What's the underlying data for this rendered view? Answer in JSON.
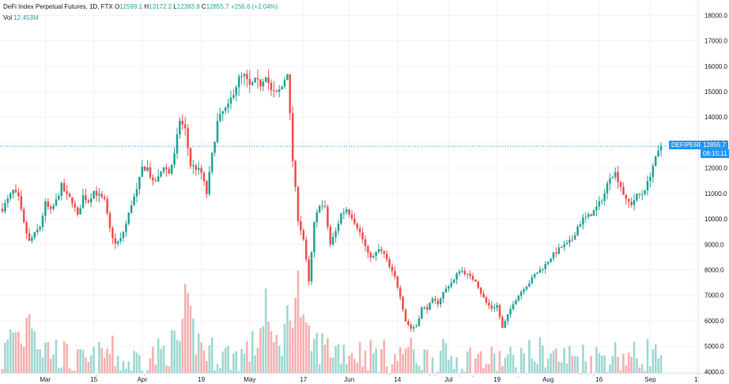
{
  "legend": {
    "symbol": "DeFi Index Perpetual Futures, 1D, FTX",
    "open_label": "O",
    "open": "12599.1",
    "high_label": "H",
    "high": "13172.2",
    "low_label": "L",
    "low": "12383.8",
    "close_label": "C",
    "close": "12855.7",
    "change": "+256.6 (+2.04%)",
    "vol_label": "Vol",
    "vol": "12.453M"
  },
  "price_tag": {
    "symbol": "DEFIPERP",
    "price": "12855.7",
    "countdown": "08:15:11"
  },
  "colors": {
    "up": "#26a69a",
    "down": "#ef5350",
    "accent": "#2196f3",
    "vol_up": "#9fd8d2",
    "vol_down": "#f6b1b0"
  },
  "chart_data": {
    "type": "candlestick",
    "title": "DeFi Index Perpetual Futures, 1D, FTX",
    "y_ticks": [
      "18000.0",
      "17000.0",
      "16000.0",
      "15000.0",
      "14000.0",
      "13000.0",
      "12000.0",
      "11000.0",
      "10000.0",
      "9000.0",
      "8000.0",
      "7000.0",
      "6000.0",
      "5000.0",
      "4000.0"
    ],
    "x_ticks": [
      "Mar",
      "15",
      "Apr",
      "19",
      "May",
      "17",
      "Jun",
      "14",
      "Jul",
      "19",
      "Aug",
      "16",
      "Sep",
      "1"
    ],
    "ylim": [
      3950,
      18600
    ],
    "last_price": 12855.7,
    "anchors": [
      [
        0,
        10400
      ],
      [
        4,
        11100
      ],
      [
        6,
        10800
      ],
      [
        8,
        9800
      ],
      [
        10,
        9100
      ],
      [
        12,
        9400
      ],
      [
        14,
        9700
      ],
      [
        16,
        10600
      ],
      [
        18,
        10300
      ],
      [
        20,
        10700
      ],
      [
        22,
        11300
      ],
      [
        24,
        10900
      ],
      [
        26,
        10700
      ],
      [
        28,
        10100
      ],
      [
        30,
        10900
      ],
      [
        32,
        10700
      ],
      [
        34,
        11100
      ],
      [
        36,
        10900
      ],
      [
        38,
        10700
      ],
      [
        40,
        9600
      ],
      [
        42,
        9000
      ],
      [
        44,
        9200
      ],
      [
        46,
        9800
      ],
      [
        48,
        10600
      ],
      [
        50,
        11100
      ],
      [
        52,
        12000
      ],
      [
        54,
        12000
      ],
      [
        56,
        11400
      ],
      [
        58,
        11600
      ],
      [
        60,
        12100
      ],
      [
        62,
        11800
      ],
      [
        64,
        12500
      ],
      [
        66,
        13900
      ],
      [
        68,
        13500
      ],
      [
        70,
        12100
      ],
      [
        72,
        12000
      ],
      [
        74,
        11800
      ],
      [
        76,
        11000
      ],
      [
        78,
        12500
      ],
      [
        80,
        13800
      ],
      [
        82,
        14200
      ],
      [
        84,
        14400
      ],
      [
        86,
        15000
      ],
      [
        88,
        15500
      ],
      [
        90,
        15600
      ],
      [
        92,
        15200
      ],
      [
        94,
        15400
      ],
      [
        96,
        15300
      ],
      [
        98,
        15700
      ],
      [
        100,
        15000
      ],
      [
        102,
        14900
      ],
      [
        104,
        15200
      ],
      [
        106,
        15800
      ],
      [
        108,
        12300
      ],
      [
        110,
        10000
      ],
      [
        112,
        9200
      ],
      [
        114,
        7500
      ],
      [
        116,
        9800
      ],
      [
        118,
        10600
      ],
      [
        120,
        10400
      ],
      [
        122,
        9000
      ],
      [
        124,
        9500
      ],
      [
        126,
        10200
      ],
      [
        128,
        10400
      ],
      [
        130,
        10100
      ],
      [
        132,
        9700
      ],
      [
        134,
        9200
      ],
      [
        136,
        8600
      ],
      [
        138,
        8500
      ],
      [
        140,
        8800
      ],
      [
        142,
        8600
      ],
      [
        144,
        8100
      ],
      [
        146,
        7700
      ],
      [
        148,
        7000
      ],
      [
        150,
        6000
      ],
      [
        152,
        5700
      ],
      [
        154,
        5800
      ],
      [
        156,
        6500
      ],
      [
        158,
        6500
      ],
      [
        160,
        6800
      ],
      [
        162,
        6700
      ],
      [
        164,
        7100
      ],
      [
        166,
        7400
      ],
      [
        168,
        7600
      ],
      [
        170,
        8000
      ],
      [
        172,
        7900
      ],
      [
        174,
        7700
      ],
      [
        176,
        7600
      ],
      [
        178,
        7100
      ],
      [
        180,
        6700
      ],
      [
        182,
        6500
      ],
      [
        184,
        6600
      ],
      [
        186,
        5700
      ],
      [
        188,
        6200
      ],
      [
        190,
        6700
      ],
      [
        192,
        7000
      ],
      [
        194,
        7300
      ],
      [
        196,
        7500
      ],
      [
        198,
        7800
      ],
      [
        200,
        8000
      ],
      [
        202,
        8200
      ],
      [
        204,
        8500
      ],
      [
        206,
        8700
      ],
      [
        208,
        8900
      ],
      [
        210,
        9000
      ],
      [
        212,
        9200
      ],
      [
        214,
        9700
      ],
      [
        216,
        10000
      ],
      [
        218,
        10100
      ],
      [
        220,
        10300
      ],
      [
        222,
        10600
      ],
      [
        224,
        11000
      ],
      [
        226,
        11700
      ],
      [
        228,
        11800
      ],
      [
        230,
        11300
      ],
      [
        232,
        10700
      ],
      [
        234,
        10600
      ],
      [
        236,
        10900
      ],
      [
        238,
        11000
      ],
      [
        240,
        11400
      ],
      [
        242,
        12100
      ],
      [
        244,
        12600
      ],
      [
        245,
        12856
      ]
    ],
    "volume_anchors": [
      [
        0,
        4500
      ],
      [
        4,
        5600
      ],
      [
        8,
        5300
      ],
      [
        10,
        6700
      ],
      [
        14,
        5000
      ],
      [
        20,
        4800
      ],
      [
        26,
        4400
      ],
      [
        32,
        4300
      ],
      [
        40,
        4800
      ],
      [
        46,
        4300
      ],
      [
        50,
        4500
      ],
      [
        56,
        4600
      ],
      [
        60,
        4800
      ],
      [
        66,
        5200
      ],
      [
        68,
        6500
      ],
      [
        72,
        5300
      ],
      [
        76,
        4800
      ],
      [
        80,
        4700
      ],
      [
        86,
        4600
      ],
      [
        90,
        4700
      ],
      [
        94,
        5000
      ],
      [
        96,
        5600
      ],
      [
        98,
        7000
      ],
      [
        100,
        4900
      ],
      [
        104,
        5300
      ],
      [
        108,
        6700
      ],
      [
        110,
        7400
      ],
      [
        112,
        5600
      ],
      [
        114,
        5100
      ],
      [
        118,
        5000
      ],
      [
        124,
        4900
      ],
      [
        130,
        4800
      ],
      [
        136,
        4700
      ],
      [
        142,
        4600
      ],
      [
        148,
        4500
      ],
      [
        150,
        5100
      ],
      [
        152,
        4700
      ],
      [
        158,
        4500
      ],
      [
        164,
        4600
      ],
      [
        170,
        4500
      ],
      [
        176,
        4500
      ],
      [
        182,
        4400
      ],
      [
        186,
        4500
      ],
      [
        190,
        4400
      ],
      [
        196,
        4600
      ],
      [
        202,
        4800
      ],
      [
        208,
        4500
      ],
      [
        214,
        4600
      ],
      [
        220,
        4500
      ],
      [
        226,
        4700
      ],
      [
        232,
        4600
      ],
      [
        238,
        4500
      ],
      [
        240,
        4800
      ],
      [
        245,
        4450
      ]
    ]
  }
}
